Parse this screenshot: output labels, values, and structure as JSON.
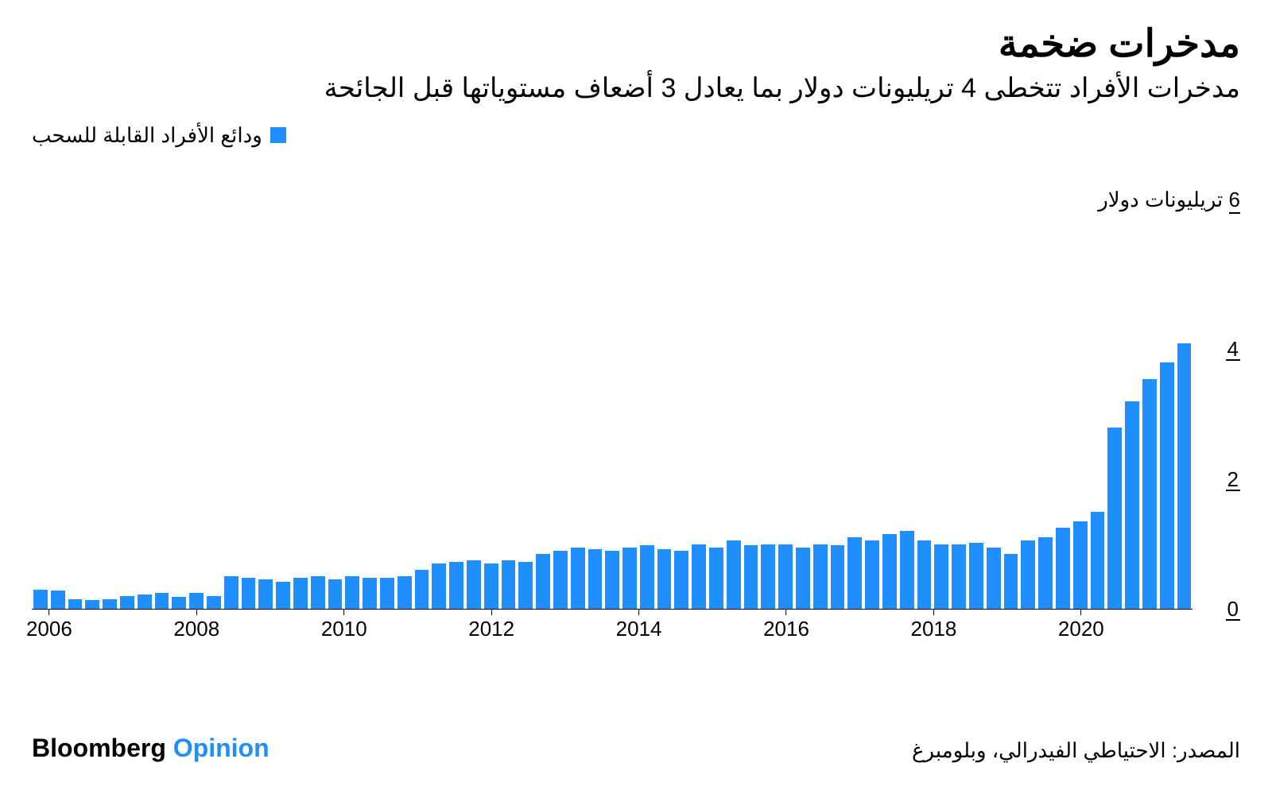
{
  "title": "مدخرات ضخمة",
  "subtitle": "مدخرات الأفراد تتخطى 4 تريليونات دولار بما يعادل 3 أضعاف مستوياتها قبل الجائحة",
  "legend": {
    "label": "ودائع الأفراد القابلة للسحب",
    "swatch_color": "#1f8fff"
  },
  "chart": {
    "type": "bar",
    "bar_color": "#1f8fff",
    "background_color": "#ffffff",
    "axis_color": "#000000",
    "y_unit_prefix": "6",
    "y_unit_suffix": " تريليونات دولار",
    "ylim": [
      0,
      6
    ],
    "y_ticks": [
      {
        "value": 0,
        "label": "0"
      },
      {
        "value": 2,
        "label": "2"
      },
      {
        "value": 4,
        "label": "4"
      }
    ],
    "x_labels": [
      "2006",
      "2008",
      "2010",
      "2012",
      "2014",
      "2016",
      "2018",
      "2020"
    ],
    "x_label_positions_pct": [
      1.5,
      14.2,
      26.9,
      39.6,
      52.3,
      65.0,
      77.7,
      90.4
    ],
    "values": [
      0.3,
      0.28,
      0.15,
      0.14,
      0.15,
      0.2,
      0.22,
      0.24,
      0.18,
      0.24,
      0.2,
      0.5,
      0.48,
      0.45,
      0.42,
      0.48,
      0.5,
      0.45,
      0.5,
      0.48,
      0.48,
      0.5,
      0.6,
      0.7,
      0.72,
      0.75,
      0.7,
      0.75,
      0.72,
      0.85,
      0.9,
      0.95,
      0.92,
      0.9,
      0.95,
      0.98,
      0.92,
      0.9,
      1.0,
      0.95,
      1.05,
      0.98,
      1.0,
      1.0,
      0.95,
      1.0,
      0.98,
      1.1,
      1.05,
      1.15,
      1.2,
      1.05,
      1.0,
      1.0,
      1.02,
      0.95,
      0.85,
      1.05,
      1.1,
      1.25,
      1.35,
      1.5,
      2.8,
      3.2,
      3.55,
      3.8,
      4.1
    ]
  },
  "source": "المصدر: الاحتياطي الفيدرالي، وبلومبرغ",
  "brand": {
    "part1": "Bloomberg",
    "part2": "Opinion",
    "part1_color": "#000000",
    "part2_color": "#1f8fff"
  }
}
